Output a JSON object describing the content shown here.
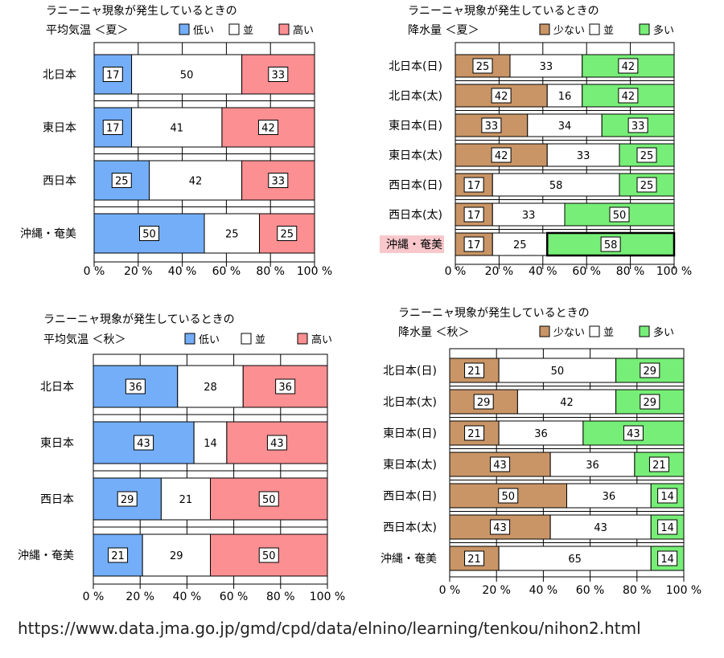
{
  "chart_data": [
    {
      "type": "bar",
      "title": "ラニーニャ現象が発生しているときの",
      "subtitle": "平均気温 ＜夏＞",
      "categories": [
        "北日本",
        "東日本",
        "西日本",
        "沖縄・奄美"
      ],
      "series": [
        {
          "name": "低い",
          "color": "#74aef9",
          "values": [
            17,
            17,
            25,
            50
          ]
        },
        {
          "name": "並",
          "color": "#ffffff",
          "values": [
            50,
            41,
            42,
            25
          ]
        },
        {
          "name": "高い",
          "color": "#fb8f92",
          "values": [
            33,
            42,
            33,
            25
          ]
        }
      ],
      "xlim": [
        0,
        100
      ],
      "x_ticks": [
        "0 %",
        "20 %",
        "40 %",
        "60 %",
        "80 %",
        "100 %"
      ],
      "highlights": [],
      "grid": true,
      "legend_position": "top-right"
    },
    {
      "type": "bar",
      "title": "ラニーニャ現象が発生しているときの",
      "subtitle": "降水量 ＜夏＞",
      "categories": [
        "北日本(日)",
        "北日本(太)",
        "東日本(日)",
        "東日本(太)",
        "西日本(日)",
        "西日本(太)",
        "沖縄・奄美"
      ],
      "series": [
        {
          "name": "少ない",
          "color": "#c99566",
          "values": [
            25,
            42,
            33,
            42,
            17,
            17,
            17
          ]
        },
        {
          "name": "並",
          "color": "#ffffff",
          "values": [
            33,
            16,
            34,
            33,
            58,
            33,
            25
          ]
        },
        {
          "name": "多い",
          "color": "#77ee77",
          "values": [
            42,
            42,
            33,
            25,
            25,
            50,
            58
          ]
        }
      ],
      "xlim": [
        0,
        100
      ],
      "x_ticks": [
        "0 %",
        "20 %",
        "40 %",
        "60 %",
        "80 %",
        "100 %"
      ],
      "highlights": [
        {
          "row": 6,
          "series": 2
        }
      ],
      "highlighted_category": "沖縄・奄美",
      "grid": true,
      "legend_position": "top-right"
    },
    {
      "type": "bar",
      "title": "ラニーニャ現象が発生しているときの",
      "subtitle": "平均気温 ＜秋＞",
      "categories": [
        "北日本",
        "東日本",
        "西日本",
        "沖縄・奄美"
      ],
      "series": [
        {
          "name": "低い",
          "color": "#74aef9",
          "values": [
            36,
            43,
            29,
            21
          ]
        },
        {
          "name": "並",
          "color": "#ffffff",
          "values": [
            28,
            14,
            21,
            29
          ]
        },
        {
          "name": "高い",
          "color": "#fb8f92",
          "values": [
            36,
            43,
            50,
            50
          ]
        }
      ],
      "xlim": [
        0,
        100
      ],
      "x_ticks": [
        "0 %",
        "20 %",
        "40 %",
        "60 %",
        "80 %",
        "100 %"
      ],
      "highlights": [],
      "grid": true,
      "legend_position": "top-right"
    },
    {
      "type": "bar",
      "title": "ラニーニャ現象が発生しているときの",
      "subtitle": "降水量 ＜秋＞",
      "categories": [
        "北日本(日)",
        "北日本(太)",
        "東日本(日)",
        "東日本(太)",
        "西日本(日)",
        "西日本(太)",
        "沖縄・奄美"
      ],
      "series": [
        {
          "name": "少ない",
          "color": "#c99566",
          "values": [
            21,
            29,
            21,
            43,
            50,
            43,
            21
          ]
        },
        {
          "name": "並",
          "color": "#ffffff",
          "values": [
            50,
            42,
            36,
            36,
            36,
            43,
            65
          ]
        },
        {
          "name": "多い",
          "color": "#77ee77",
          "values": [
            29,
            29,
            43,
            21,
            14,
            14,
            14
          ]
        }
      ],
      "xlim": [
        0,
        100
      ],
      "x_ticks": [
        "0 %",
        "20 %",
        "40 %",
        "60 %",
        "80 %",
        "100 %"
      ],
      "highlights": [],
      "grid": true,
      "legend_position": "top-right"
    }
  ],
  "footer": {
    "source_url": "https://www.data.jma.go.jp/gmd/cpd/data/elnino/learning/tenkou/nihon2.html"
  }
}
